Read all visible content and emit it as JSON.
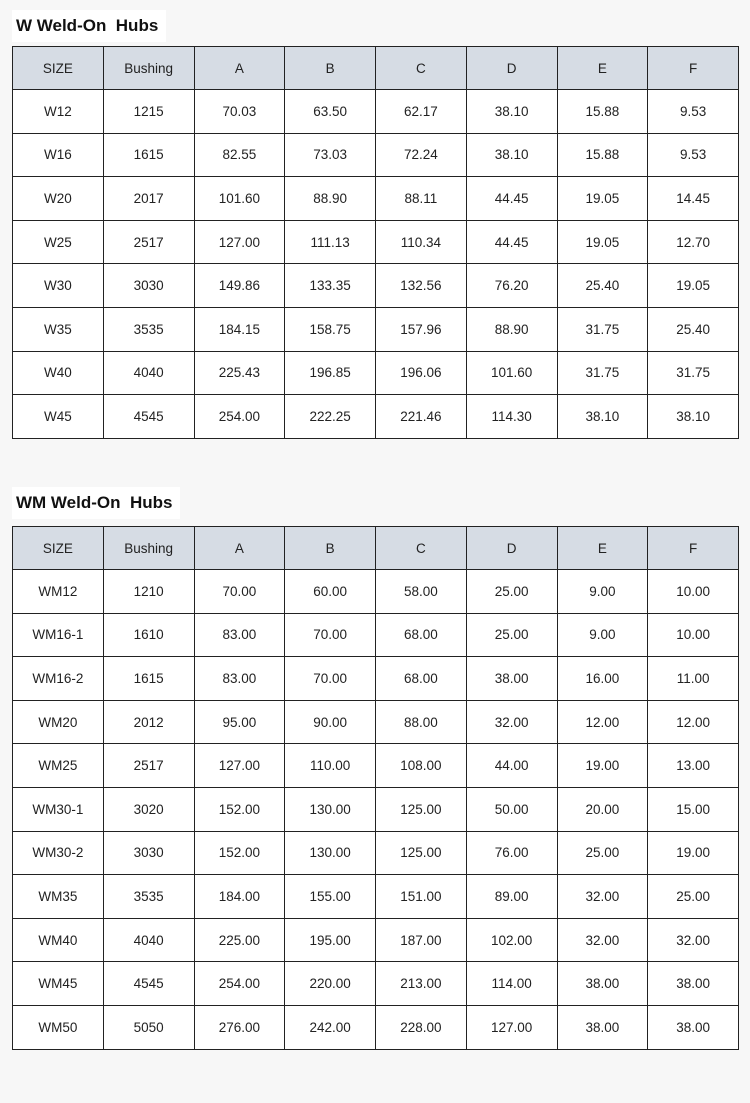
{
  "tables": [
    {
      "title": "W Weld-On  Hubs",
      "headers": [
        "SIZE",
        "Bushing",
        "A",
        "B",
        "C",
        "D",
        "E",
        "F"
      ],
      "rows": [
        [
          "W12",
          "1215",
          "70.03",
          "63.50",
          "62.17",
          "38.10",
          "15.88",
          "9.53"
        ],
        [
          "W16",
          "1615",
          "82.55",
          "73.03",
          "72.24",
          "38.10",
          "15.88",
          "9.53"
        ],
        [
          "W20",
          "2017",
          "101.60",
          "88.90",
          "88.11",
          "44.45",
          "19.05",
          "14.45"
        ],
        [
          "W25",
          "2517",
          "127.00",
          "111.13",
          "110.34",
          "44.45",
          "19.05",
          "12.70"
        ],
        [
          "W30",
          "3030",
          "149.86",
          "133.35",
          "132.56",
          "76.20",
          "25.40",
          "19.05"
        ],
        [
          "W35",
          "3535",
          "184.15",
          "158.75",
          "157.96",
          "88.90",
          "31.75",
          "25.40"
        ],
        [
          "W40",
          "4040",
          "225.43",
          "196.85",
          "196.06",
          "101.60",
          "31.75",
          "31.75"
        ],
        [
          "W45",
          "4545",
          "254.00",
          "222.25",
          "221.46",
          "114.30",
          "38.10",
          "38.10"
        ]
      ]
    },
    {
      "title": "WM Weld-On  Hubs",
      "headers": [
        "SIZE",
        "Bushing",
        "A",
        "B",
        "C",
        "D",
        "E",
        "F"
      ],
      "rows": [
        [
          "WM12",
          "1210",
          "70.00",
          "60.00",
          "58.00",
          "25.00",
          "9.00",
          "10.00"
        ],
        [
          "WM16-1",
          "1610",
          "83.00",
          "70.00",
          "68.00",
          "25.00",
          "9.00",
          "10.00"
        ],
        [
          "WM16-2",
          "1615",
          "83.00",
          "70.00",
          "68.00",
          "38.00",
          "16.00",
          "11.00"
        ],
        [
          "WM20",
          "2012",
          "95.00",
          "90.00",
          "88.00",
          "32.00",
          "12.00",
          "12.00"
        ],
        [
          "WM25",
          "2517",
          "127.00",
          "110.00",
          "108.00",
          "44.00",
          "19.00",
          "13.00"
        ],
        [
          "WM30-1",
          "3020",
          "152.00",
          "130.00",
          "125.00",
          "50.00",
          "20.00",
          "15.00"
        ],
        [
          "WM30-2",
          "3030",
          "152.00",
          "130.00",
          "125.00",
          "76.00",
          "25.00",
          "19.00"
        ],
        [
          "WM35",
          "3535",
          "184.00",
          "155.00",
          "151.00",
          "89.00",
          "32.00",
          "25.00"
        ],
        [
          "WM40",
          "4040",
          "225.00",
          "195.00",
          "187.00",
          "102.00",
          "32.00",
          "32.00"
        ],
        [
          "WM45",
          "4545",
          "254.00",
          "220.00",
          "213.00",
          "114.00",
          "38.00",
          "38.00"
        ],
        [
          "WM50",
          "5050",
          "276.00",
          "242.00",
          "228.00",
          "127.00",
          "38.00",
          "38.00"
        ]
      ]
    }
  ],
  "colors": {
    "header_bg": "#d6dce4",
    "border": "#222222"
  }
}
